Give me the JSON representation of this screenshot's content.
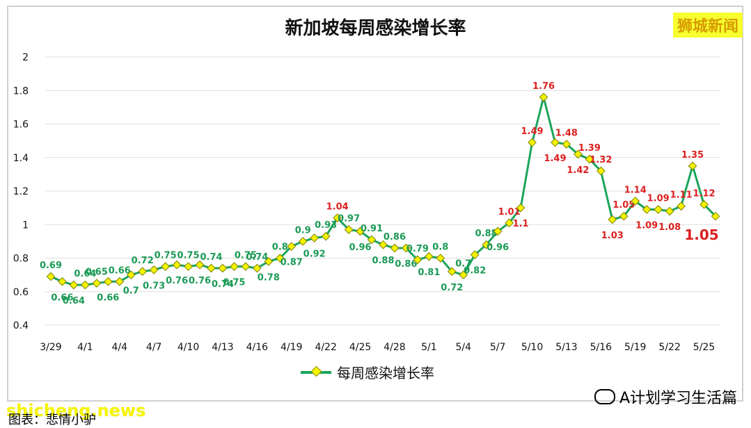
{
  "title": "新加坡每周感染增长率",
  "brand": "狮城新闻",
  "watermark": "shicheng.news",
  "source": "图表：悲情小驴",
  "author": "A计划学习生活篇",
  "colors": {
    "line": "#1aa55a",
    "marker_fill": "#f3f300",
    "low_label": "#1a9a55",
    "high_label": "#dd1f1f"
  },
  "chart_data": {
    "type": "line",
    "title": "新加坡每周感染增长率",
    "xlabel": "",
    "ylabel": "",
    "ylim": [
      0.4,
      2
    ],
    "y_ticks": [
      "0.4",
      "0.6",
      "0.8",
      "1",
      "1.2",
      "1.4",
      "1.6",
      "1.8",
      "2"
    ],
    "x_tick_labels": [
      "3/29",
      "4/1",
      "4/4",
      "4/7",
      "4/10",
      "4/13",
      "4/16",
      "4/19",
      "4/22",
      "4/25",
      "4/28",
      "5/1",
      "5/4",
      "5/7",
      "5/10",
      "5/13",
      "5/16",
      "5/19",
      "5/22",
      "5/25"
    ],
    "grid": true,
    "legend_position": "bottom",
    "series": [
      {
        "name": "每周感染增长率",
        "x": [
          "3/29",
          "3/30",
          "3/31",
          "4/1",
          "4/2",
          "4/3",
          "4/4",
          "4/5",
          "4/6",
          "4/7",
          "4/8",
          "4/9",
          "4/10",
          "4/11",
          "4/12",
          "4/13",
          "4/14",
          "4/15",
          "4/16",
          "4/17",
          "4/18",
          "4/19",
          "4/20",
          "4/21",
          "4/22",
          "4/23",
          "4/24",
          "4/25",
          "4/26",
          "4/27",
          "4/28",
          "4/29",
          "4/30",
          "5/1",
          "5/2",
          "5/3",
          "5/4",
          "5/5",
          "5/6",
          "5/7",
          "5/8",
          "5/9",
          "5/10",
          "5/11",
          "5/12",
          "5/13",
          "5/14",
          "5/15",
          "5/16",
          "5/17",
          "5/18",
          "5/19",
          "5/20",
          "5/21",
          "5/22",
          "5/23",
          "5/24",
          "5/25",
          "5/26"
        ],
        "values": [
          0.69,
          0.66,
          0.64,
          0.64,
          0.65,
          0.66,
          0.66,
          0.7,
          0.72,
          0.73,
          0.75,
          0.76,
          0.75,
          0.76,
          0.74,
          0.74,
          0.75,
          0.75,
          0.74,
          0.78,
          0.8,
          0.87,
          0.9,
          0.92,
          0.93,
          1.04,
          0.97,
          0.96,
          0.91,
          0.88,
          0.86,
          0.86,
          0.79,
          0.81,
          0.8,
          0.72,
          0.7,
          0.82,
          0.88,
          0.96,
          1.01,
          1.1,
          1.49,
          1.76,
          1.49,
          1.48,
          1.42,
          1.39,
          1.32,
          1.03,
          1.05,
          1.14,
          1.09,
          1.09,
          1.08,
          1.11,
          1.35,
          1.12,
          1.05
        ]
      }
    ],
    "data_labels": [
      "0.69",
      "0.66",
      "0.64",
      "0.64",
      "0.65",
      "0.66",
      "0.66",
      "0.7",
      "0.72",
      "0.73",
      "0.75",
      "0.76",
      "0.75",
      "0.76",
      "0.74",
      "0.74",
      "0.75",
      "0.75",
      "0.74",
      "0.78",
      "0.8",
      "0.87",
      "0.9",
      "0.92",
      "0.93",
      "1.04",
      "0.97",
      "0.96",
      "0.91",
      "0.88",
      "0.86",
      "0.86",
      "0.79",
      "0.81",
      "0.8",
      "0.72",
      "0.7",
      "0.82",
      "0.88",
      "0.96",
      "1.01",
      "1.1",
      "1.49",
      "1.76",
      "1.49",
      "1.48",
      "1.42",
      "1.39",
      "1.32",
      "1.03",
      "1.05",
      "1.14",
      "1.09",
      "1.09",
      "1.08",
      "1.11",
      "1.35",
      "1.12",
      "1.05"
    ],
    "label_placement": [
      "above",
      "below",
      "below",
      "above",
      "above",
      "below",
      "above",
      "below",
      "above",
      "below",
      "above",
      "below",
      "above",
      "below",
      "above",
      "below",
      "below",
      "above",
      "above",
      "below",
      "above",
      "below",
      "above",
      "below",
      "above",
      "above",
      "above",
      "below",
      "above",
      "below",
      "above",
      "below",
      "above",
      "below",
      "above",
      "below",
      "above",
      "below",
      "above",
      "below",
      "above",
      "below",
      "above",
      "above",
      "below",
      "above",
      "below",
      "above",
      "above",
      "below",
      "above",
      "above",
      "below",
      "above",
      "below",
      "above",
      "above",
      "above",
      "below"
    ],
    "highlighted_label_index": 58
  }
}
